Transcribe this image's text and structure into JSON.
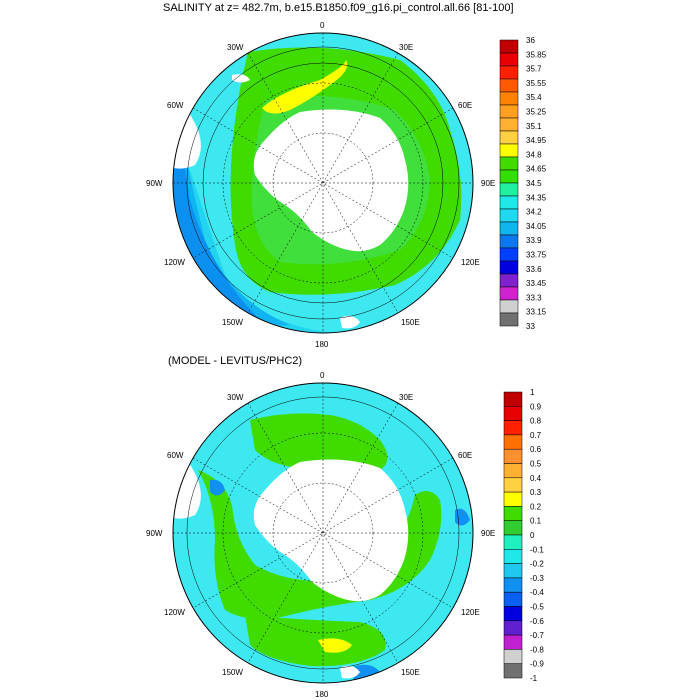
{
  "titles": {
    "main": "SALINITY at z= 482.7m, b.e15.B1850.f09_g16.pi_control.all.66 [81-100]",
    "difference": "(MODEL - LEVITUS/PHC2)"
  },
  "map_labels": [
    "0",
    "30E",
    "60E",
    "90E",
    "120E",
    "150E",
    "180",
    "150W",
    "120W",
    "90W",
    "60W",
    "30W"
  ],
  "colorbar_top": {
    "labels": [
      "36",
      "35.85",
      "35.7",
      "35.55",
      "35.4",
      "35.25",
      "35.1",
      "34.95",
      "34.8",
      "34.65",
      "34.5",
      "34.35",
      "34.2",
      "34.05",
      "33.9",
      "33.75",
      "33.6",
      "33.45",
      "33.3",
      "33.15",
      "33"
    ],
    "colors": [
      "#c00000",
      "#e60000",
      "#ff2000",
      "#ff5a00",
      "#ff8200",
      "#ffa020",
      "#ffb030",
      "#ffd040",
      "#ffff00",
      "#40dc00",
      "#30e000",
      "#20f0a0",
      "#20e8e8",
      "#20d8f0",
      "#10b4f0",
      "#0a78f0",
      "#0040ff",
      "#0000e0",
      "#8020d0",
      "#d020d0",
      "#d0d0d0",
      "#707070"
    ]
  },
  "colorbar_bottom": {
    "labels": [
      "1",
      "0.9",
      "0.8",
      "0.7",
      "0.6",
      "0.5",
      "0.4",
      "0.3",
      "0.2",
      "0.1",
      "0",
      "-0.1",
      "-0.2",
      "-0.3",
      "-0.4",
      "-0.5",
      "-0.6",
      "-0.7",
      "-0.8",
      "-0.9",
      "-1"
    ],
    "colors": [
      "#c00000",
      "#e60000",
      "#ff2000",
      "#ff7000",
      "#ff9030",
      "#ffb030",
      "#ffd040",
      "#ffff00",
      "#40dc00",
      "#30cc30",
      "#20f0c0",
      "#20e8e8",
      "#20c8f0",
      "#1090f0",
      "#0a60f0",
      "#0000e0",
      "#6020d0",
      "#c020d0",
      "#d0d0d0",
      "#707070"
    ]
  },
  "field_colors": {
    "ocean_light": "#3ee8f0",
    "ocean_mid": "#22d4f0",
    "ocean_deep": "#10b4f0",
    "green": "#40dc00",
    "yellow": "#ffff00",
    "land": "#ffffff"
  }
}
